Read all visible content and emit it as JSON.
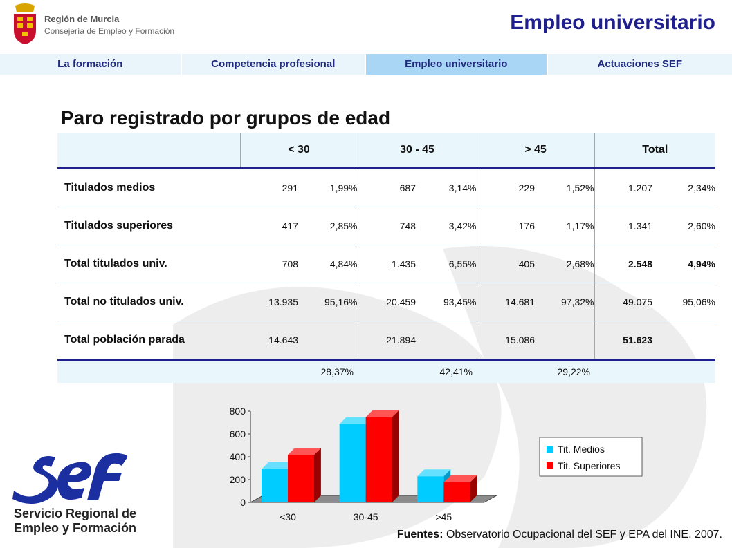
{
  "header": {
    "brand_line1": "Región de Murcia",
    "brand_line2": "Consejería de Empleo y Formación",
    "title": "Empleo universitario"
  },
  "nav": {
    "tabs": [
      {
        "label": "La formación",
        "active": false
      },
      {
        "label": "Competencia profesional",
        "active": false
      },
      {
        "label": "Empleo universitario",
        "active": true
      },
      {
        "label": "Actuaciones SEF",
        "active": false
      }
    ]
  },
  "section_title": "Paro registrado por grupos de edad",
  "table": {
    "columns": [
      "",
      "< 30",
      "30 - 45",
      "> 45",
      "Total"
    ],
    "rows": [
      {
        "label": "Titulados medios",
        "values": [
          [
            "291",
            "1,99%"
          ],
          [
            "687",
            "3,14%"
          ],
          [
            "229",
            "1,52%"
          ],
          [
            "1.207",
            "2,34%"
          ]
        ],
        "bold_total": false
      },
      {
        "label": "Titulados superiores",
        "values": [
          [
            "417",
            "2,85%"
          ],
          [
            "748",
            "3,42%"
          ],
          [
            "176",
            "1,17%"
          ],
          [
            "1.341",
            "2,60%"
          ]
        ],
        "bold_total": false
      },
      {
        "label": "Total titulados univ.",
        "values": [
          [
            "708",
            "4,84%"
          ],
          [
            "1.435",
            "6,55%"
          ],
          [
            "405",
            "2,68%"
          ],
          [
            "2.548",
            "4,94%"
          ]
        ],
        "bold_total": true
      },
      {
        "label": "Total no titulados univ.",
        "values": [
          [
            "13.935",
            "95,16%"
          ],
          [
            "20.459",
            "93,45%"
          ],
          [
            "14.681",
            "97,32%"
          ],
          [
            "49.075",
            "95,06%"
          ]
        ],
        "bold_total": false
      },
      {
        "label": "Total población parada",
        "values": [
          [
            "14.643",
            ""
          ],
          [
            "21.894",
            ""
          ],
          [
            "15.086",
            ""
          ],
          [
            "51.623",
            ""
          ]
        ],
        "bold_total": true
      }
    ],
    "shares": [
      "28,37%",
      "42,41%",
      "29,22%"
    ]
  },
  "chart_data": {
    "type": "bar",
    "categories": [
      "<30",
      "30-45",
      ">45"
    ],
    "series": [
      {
        "name": "Tit. Medios",
        "values": [
          291,
          687,
          229
        ],
        "color": "#00ccff"
      },
      {
        "name": "Tit. Superiores",
        "values": [
          417,
          748,
          176
        ],
        "color": "#ff0000"
      }
    ],
    "yticks": [
      "0",
      "200",
      "400",
      "600",
      "800"
    ],
    "ylim": [
      0,
      800
    ],
    "legend_position": "right"
  },
  "footer": {
    "sef_line1": "Servicio Regional de",
    "sef_line2": "Empleo y Formación",
    "source_label": "Fuentes:",
    "source_text": " Observatorio Ocupacional del SEF y EPA del INE. 2007."
  },
  "colors": {
    "title_blue": "#1f1f8f",
    "tab_bg": "#eaf4fb",
    "tab_active_bg": "#a9d6f5",
    "sef_blue": "#1c2fa0"
  }
}
